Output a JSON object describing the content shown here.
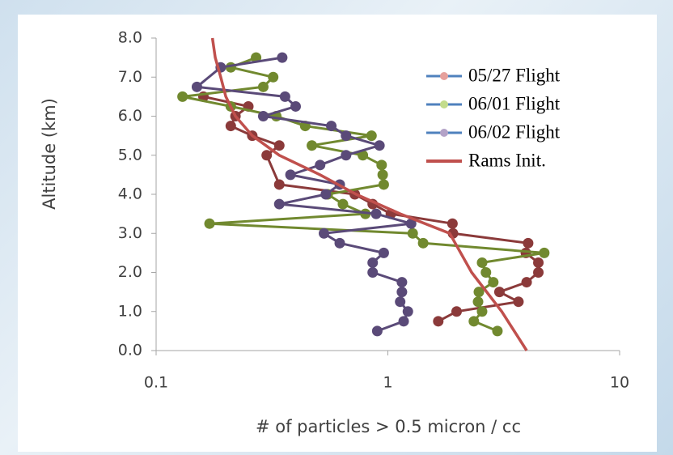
{
  "chart_data": {
    "type": "line",
    "xlabel": "# of particles > 0.5 micron / cc",
    "ylabel": "Altitude (km)",
    "xscale": "log",
    "xlim": [
      0.1,
      10
    ],
    "xticks": [
      0.1,
      1,
      10
    ],
    "ylim": [
      0,
      8
    ],
    "yticks": [
      {
        "value": 0,
        "label": "0.0"
      },
      {
        "value": 1,
        "label": "1.0"
      },
      {
        "value": 2,
        "label": "2.0"
      },
      {
        "value": 3,
        "label": "3.0"
      },
      {
        "value": 4,
        "label": "4.0"
      },
      {
        "value": 5,
        "label": "5.0"
      },
      {
        "value": 6,
        "label": "6.0"
      },
      {
        "value": 7,
        "label": "7.0"
      },
      {
        "value": 8,
        "label": "8.0"
      }
    ],
    "grid": false,
    "legend": "upper right",
    "legend_line_color": "#4f81bd",
    "series": [
      {
        "name": "05/27 Flight",
        "color": "#8b3a3a",
        "legend_marker_color": "#e6a09c",
        "markers": true,
        "x": [
          1.65,
          1.98,
          3.66,
          3.03,
          3.97,
          4.46,
          4.46,
          3.94,
          4.03,
          1.91,
          1.9,
          1.03,
          0.86,
          0.72,
          0.34,
          0.3,
          0.34,
          0.26,
          0.21,
          0.22,
          0.25,
          0.16
        ],
        "y": [
          0.75,
          1.0,
          1.25,
          1.5,
          1.75,
          2.0,
          2.25,
          2.5,
          2.75,
          3.0,
          3.25,
          3.5,
          3.75,
          4.0,
          4.25,
          5.0,
          5.25,
          5.5,
          5.75,
          6.0,
          6.25,
          6.5
        ]
      },
      {
        "name": "06/01 Flight",
        "color": "#71892f",
        "legend_marker_color": "#c3dc8c",
        "markers": true,
        "x": [
          2.97,
          2.35,
          2.55,
          2.45,
          2.47,
          2.85,
          2.65,
          2.55,
          4.73,
          1.42,
          1.28,
          0.17,
          0.8,
          0.64,
          0.55,
          0.96,
          0.95,
          0.94,
          0.78,
          0.47,
          0.85,
          0.44,
          0.33,
          0.21,
          0.13,
          0.29,
          0.32,
          0.21,
          0.27
        ],
        "y": [
          0.5,
          0.75,
          1.0,
          1.25,
          1.5,
          1.75,
          2.0,
          2.25,
          2.5,
          2.75,
          3.0,
          3.25,
          3.5,
          3.75,
          4.0,
          4.25,
          4.5,
          4.75,
          5.0,
          5.25,
          5.5,
          5.75,
          6.0,
          6.25,
          6.5,
          6.75,
          7.0,
          7.25,
          7.5
        ]
      },
      {
        "name": "06/02 Flight",
        "color": "#5a4a78",
        "legend_marker_color": "#b3a2c7",
        "markers": true,
        "x": [
          0.9,
          1.17,
          1.22,
          1.13,
          1.15,
          1.15,
          0.86,
          0.86,
          0.96,
          0.62,
          0.53,
          1.26,
          0.89,
          0.34,
          0.54,
          0.62,
          0.38,
          0.51,
          0.66,
          0.92,
          0.66,
          0.57,
          0.29,
          0.4,
          0.36,
          0.15,
          0.19,
          0.35
        ],
        "y": [
          0.5,
          0.75,
          1.0,
          1.25,
          1.5,
          1.75,
          2.0,
          2.25,
          2.5,
          2.75,
          3.0,
          3.25,
          3.5,
          3.75,
          4.0,
          4.25,
          4.5,
          4.75,
          5.0,
          5.25,
          5.5,
          5.75,
          6.0,
          6.25,
          6.5,
          6.75,
          7.25,
          7.5
        ]
      },
      {
        "name": "Rams Init.",
        "color": "#c0504d",
        "markers": false,
        "x": [
          3.97,
          3.1,
          2.3,
          1.85,
          1.13,
          0.73,
          0.51,
          0.34,
          0.26,
          0.22,
          0.2,
          0.19,
          0.18,
          0.175
        ],
        "y": [
          0,
          1,
          2,
          3,
          3.5,
          4,
          4.5,
          5,
          5.5,
          6,
          6.5,
          7,
          7.5,
          8
        ]
      }
    ]
  }
}
